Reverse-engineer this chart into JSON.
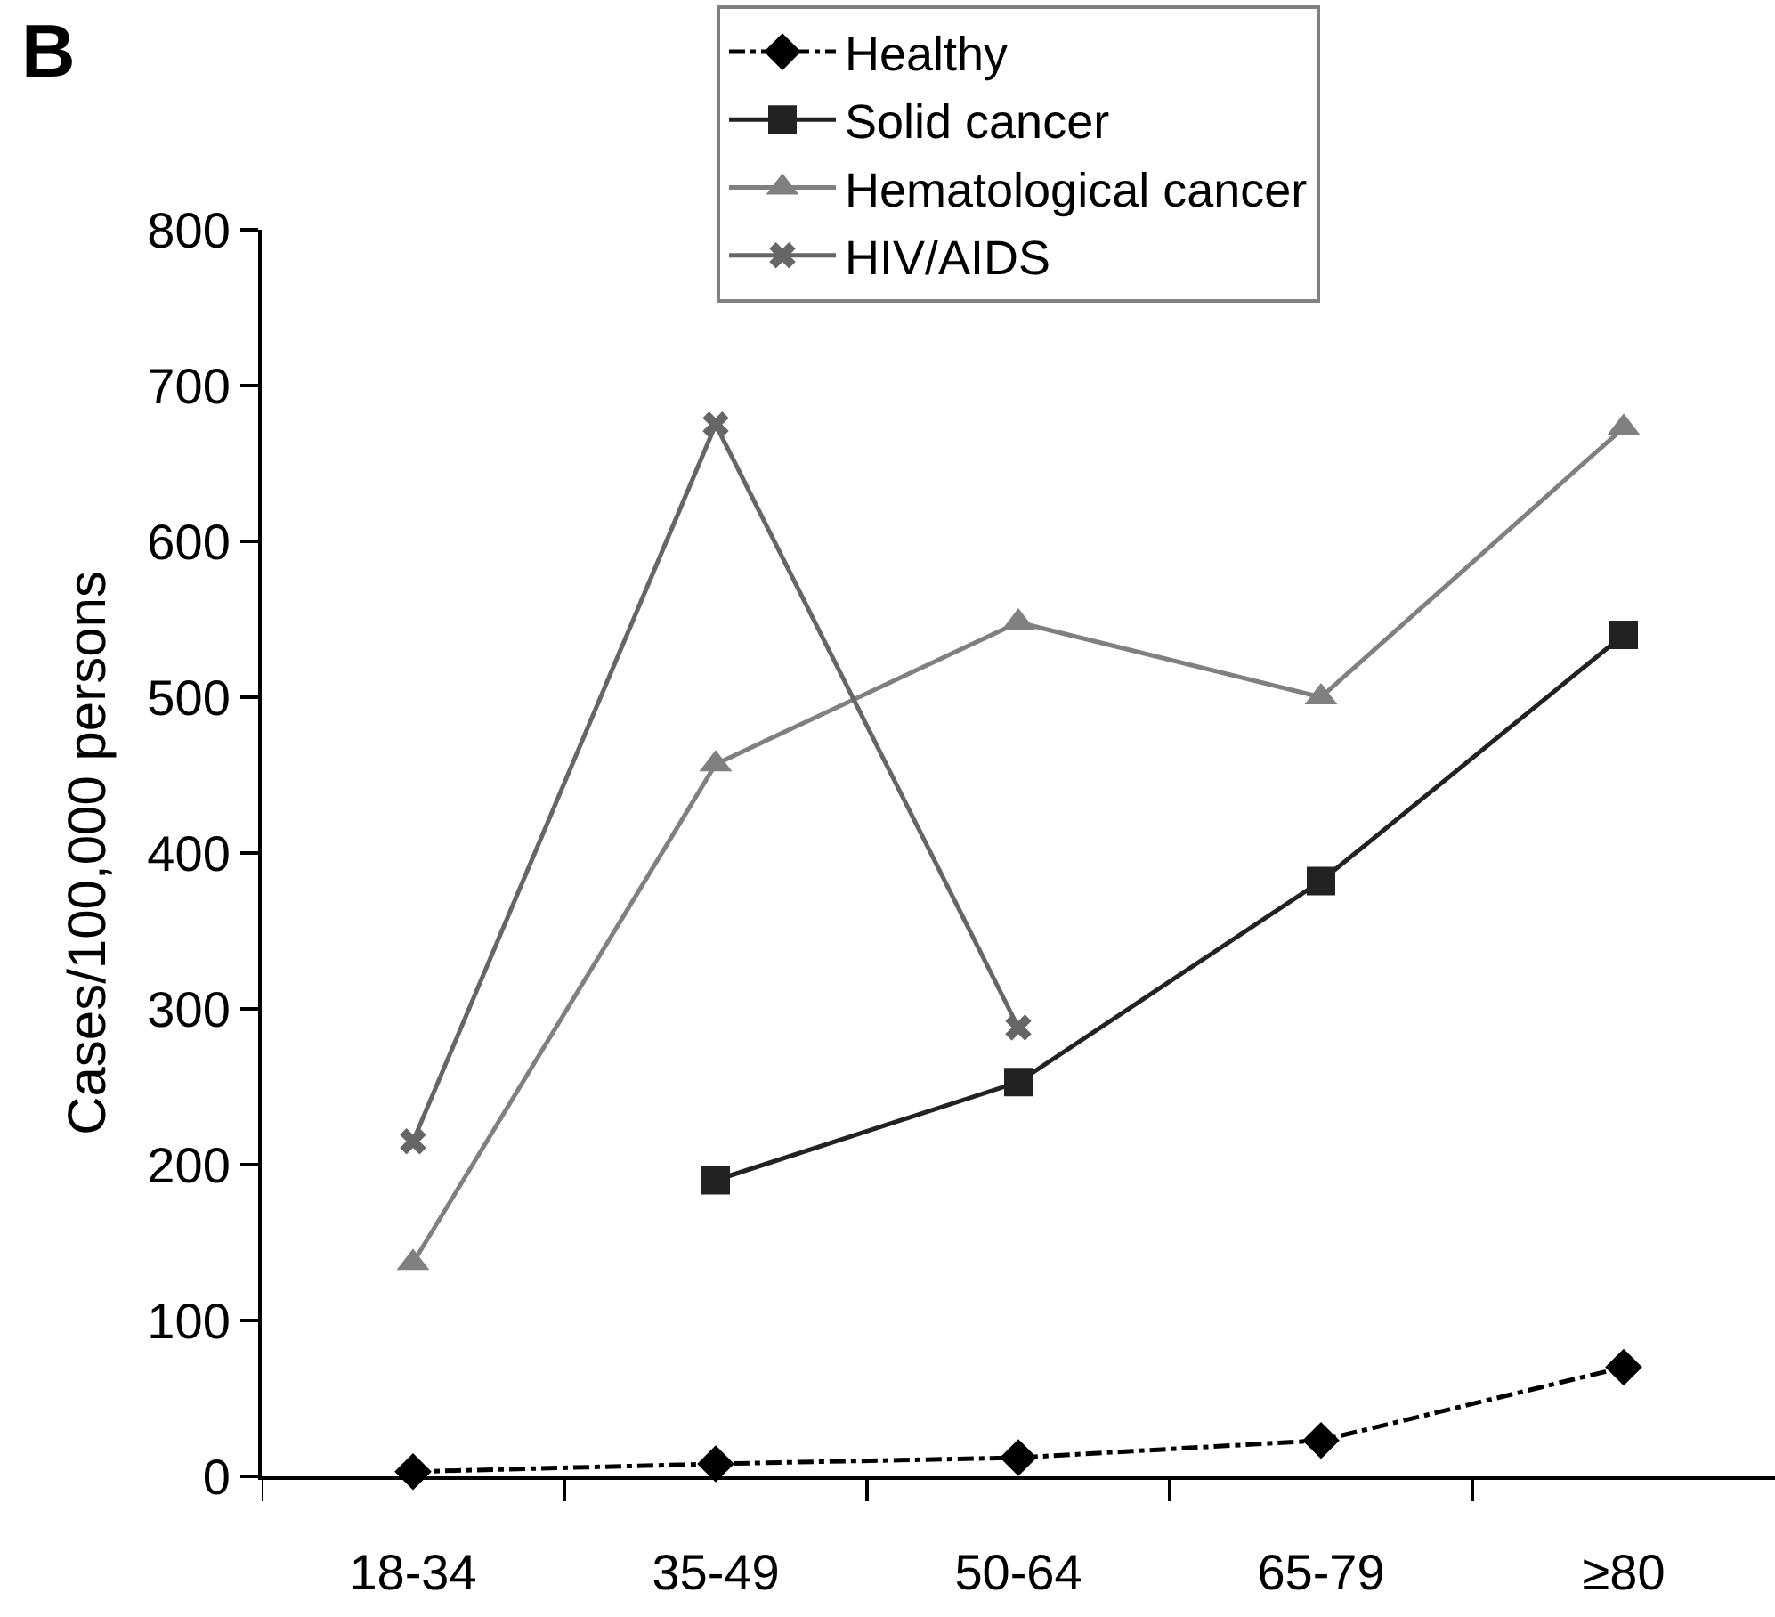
{
  "chart_data": {
    "type": "line",
    "title": "B",
    "ylabel": "Cases/100,000 persons",
    "categories": [
      "18-34",
      "35-49",
      "50-64",
      "65-79",
      "≥80"
    ],
    "series": [
      {
        "name": "Healthy",
        "color": "#000000",
        "marker": "diamond",
        "line_style": "dashed",
        "values": [
          3,
          8,
          12,
          23,
          70
        ]
      },
      {
        "name": "Solid cancer",
        "color": "#222222",
        "marker": "square",
        "line_style": "solid",
        "values": [
          null,
          190,
          253,
          382,
          540
        ]
      },
      {
        "name": "Hematological cancer",
        "color": "#808080",
        "marker": "triangle",
        "line_style": "solid",
        "values": [
          137,
          457,
          548,
          500,
          673
        ]
      },
      {
        "name": "HIV/AIDS",
        "color": "#666666",
        "marker": "cross",
        "line_style": "solid",
        "values": [
          215,
          675,
          288,
          null,
          null
        ]
      }
    ],
    "ylim": [
      0,
      800
    ],
    "yticks": [
      0,
      100,
      200,
      300,
      400,
      500,
      600,
      700,
      800
    ],
    "grid": false,
    "legend": "top"
  }
}
